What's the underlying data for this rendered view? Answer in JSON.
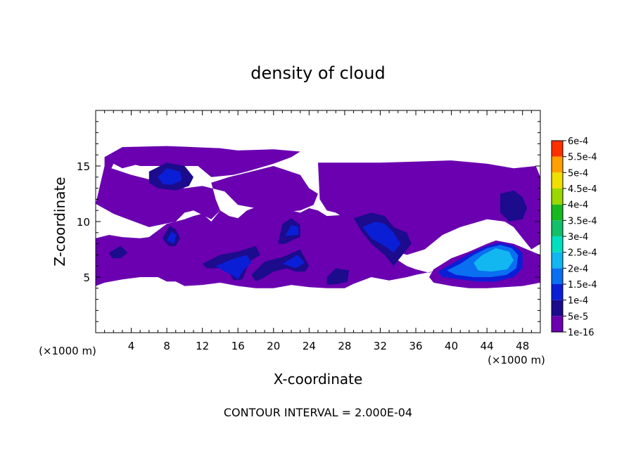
{
  "chart_data": {
    "type": "heatmap",
    "title": "density of cloud",
    "xlabel": "X-coordinate",
    "ylabel": "Z-coordinate",
    "x_unit_left": "(×1000 m)",
    "x_unit_right": "(×1000 m)",
    "xlim": [
      0,
      50
    ],
    "ylim": [
      0,
      20
    ],
    "x_ticks": [
      "4",
      "8",
      "12",
      "16",
      "20",
      "24",
      "28",
      "32",
      "36",
      "40",
      "44",
      "48"
    ],
    "x_tick_values": [
      4,
      8,
      12,
      16,
      20,
      24,
      28,
      32,
      36,
      40,
      44,
      48
    ],
    "y_ticks": [
      "5",
      "10",
      "15"
    ],
    "y_tick_values": [
      5,
      10,
      15
    ],
    "colorbar": {
      "labels": [
        "1e-16",
        "5e-5",
        "1e-4",
        "1.5e-4",
        "2e-4",
        "2.5e-4",
        "3e-4",
        "3.5e-4",
        "4e-4",
        "4.5e-4",
        "5e-4",
        "5.5e-4",
        "6e-4"
      ],
      "colors": [
        "#6a00b0",
        "#1c0b8c",
        "#0a1ed6",
        "#0a6ff0",
        "#12b6f0",
        "#00e0c0",
        "#10c06a",
        "#18b820",
        "#9ad800",
        "#f0e000",
        "#ffa000",
        "#ff3000",
        "#ff7a72"
      ]
    },
    "footnote": "CONTOUR INTERVAL = 2.000E-04",
    "regions": [
      {
        "level": 1,
        "points": [
          [
            0,
            11.6
          ],
          [
            1,
            13.5
          ],
          [
            1,
            15.8
          ],
          [
            3,
            16.6
          ],
          [
            14,
            16.6
          ],
          [
            14,
            15.5
          ],
          [
            11,
            15.2
          ],
          [
            9,
            15
          ],
          [
            5,
            15.2
          ],
          [
            3,
            14.8
          ],
          [
            2,
            15.2
          ]
        ]
      },
      {
        "level": 1,
        "points": [
          [
            1,
            15.8
          ],
          [
            3,
            16.7
          ],
          [
            8,
            16.8
          ],
          [
            14,
            16.6
          ],
          [
            16,
            16.4
          ],
          [
            20,
            16.5
          ],
          [
            23,
            16.3
          ],
          [
            22,
            15.8
          ],
          [
            20,
            15.2
          ],
          [
            17,
            14.5
          ],
          [
            15.5,
            14.2
          ],
          [
            13,
            14
          ],
          [
            11.5,
            15
          ],
          [
            9,
            15
          ],
          [
            5,
            15
          ]
        ]
      },
      {
        "level": 1,
        "points": [
          [
            0,
            11.6
          ],
          [
            2,
            10.7
          ],
          [
            3,
            10.4
          ],
          [
            6,
            9.5
          ],
          [
            9,
            10
          ],
          [
            10,
            10.8
          ],
          [
            11,
            11
          ],
          [
            13,
            10.2
          ],
          [
            14,
            11
          ],
          [
            13.5,
            12
          ],
          [
            13,
            13.5
          ],
          [
            15,
            14
          ],
          [
            17,
            14.4
          ],
          [
            20,
            15
          ],
          [
            23,
            14.2
          ],
          [
            24,
            13
          ],
          [
            25,
            12.5
          ],
          [
            24.5,
            11.5
          ],
          [
            23,
            11
          ],
          [
            20,
            10.8
          ],
          [
            18,
            11.2
          ],
          [
            16,
            11.5
          ],
          [
            14.5,
            12.7
          ],
          [
            12,
            13.2
          ],
          [
            10,
            13
          ],
          [
            8,
            13.4
          ],
          [
            6,
            13.8
          ],
          [
            4,
            14.2
          ],
          [
            1,
            15
          ]
        ]
      },
      {
        "level": 1,
        "points": [
          [
            25,
            15.3
          ],
          [
            29,
            15.3
          ],
          [
            32,
            15.3
          ],
          [
            36,
            15.4
          ],
          [
            40,
            15.5
          ],
          [
            44,
            15.2
          ],
          [
            47,
            14.8
          ],
          [
            49.5,
            15
          ],
          [
            50,
            14
          ],
          [
            50,
            8
          ],
          [
            49,
            7.5
          ],
          [
            48,
            8.5
          ],
          [
            47,
            9.5
          ],
          [
            46,
            10
          ],
          [
            44,
            10.2
          ],
          [
            41,
            9.5
          ],
          [
            39,
            8.8
          ],
          [
            37,
            7.5
          ],
          [
            35,
            7
          ],
          [
            33,
            7.5
          ],
          [
            30,
            9
          ],
          [
            28,
            10.3
          ],
          [
            27,
            10.8
          ],
          [
            26,
            11
          ],
          [
            25.2,
            12
          ]
        ]
      },
      {
        "level": 1,
        "points": [
          [
            0,
            8.5
          ],
          [
            1.5,
            8.8
          ],
          [
            3,
            8.6
          ],
          [
            5,
            8.5
          ],
          [
            6,
            8.6
          ],
          [
            8,
            9.8
          ],
          [
            10,
            10.2
          ],
          [
            11,
            10.5
          ],
          [
            12,
            10.7
          ],
          [
            13,
            10
          ],
          [
            14,
            11
          ],
          [
            15,
            10.5
          ],
          [
            16,
            10.3
          ],
          [
            17,
            11
          ],
          [
            18,
            11.3
          ],
          [
            19,
            11.5
          ],
          [
            21,
            11.2
          ],
          [
            23,
            10.8
          ],
          [
            24,
            11.2
          ],
          [
            25,
            11
          ],
          [
            26,
            10.5
          ],
          [
            28,
            10.6
          ],
          [
            30,
            10.9
          ],
          [
            30.5,
            9
          ],
          [
            33,
            7.5
          ],
          [
            34,
            6.5
          ],
          [
            35,
            6
          ],
          [
            36,
            5.7
          ],
          [
            37.5,
            5.4
          ],
          [
            38.5,
            5.6
          ],
          [
            36,
            5.2
          ],
          [
            35,
            5
          ],
          [
            33,
            4.7
          ],
          [
            31,
            5
          ],
          [
            29,
            4.4
          ],
          [
            28,
            4
          ],
          [
            26,
            4
          ],
          [
            24,
            4.1
          ],
          [
            22,
            4.3
          ],
          [
            20,
            4
          ],
          [
            18,
            4
          ],
          [
            16,
            4.2
          ],
          [
            14,
            4.5
          ],
          [
            12,
            4.3
          ],
          [
            10,
            4.2
          ],
          [
            9,
            4.6
          ],
          [
            8,
            4.6
          ],
          [
            7,
            5
          ],
          [
            5,
            5
          ],
          [
            3,
            4.8
          ],
          [
            1,
            4.5
          ],
          [
            0,
            4.2
          ]
        ]
      },
      {
        "level": 1,
        "points": [
          [
            38,
            5.7
          ],
          [
            40,
            6.7
          ],
          [
            42,
            7.3
          ],
          [
            44,
            8
          ],
          [
            45,
            8.3
          ],
          [
            47,
            8
          ],
          [
            48.5,
            7.5
          ],
          [
            50,
            7
          ],
          [
            50,
            4.5
          ],
          [
            48,
            4.2
          ],
          [
            46,
            4.1
          ],
          [
            44,
            4
          ],
          [
            42,
            4
          ],
          [
            40,
            4.2
          ],
          [
            38,
            4.5
          ],
          [
            37.5,
            5
          ]
        ]
      },
      {
        "level": 2,
        "points": [
          [
            6,
            14.5
          ],
          [
            8,
            15.3
          ],
          [
            10,
            15
          ],
          [
            11,
            14
          ],
          [
            10.5,
            13.2
          ],
          [
            9,
            12.8
          ],
          [
            7,
            13
          ],
          [
            6,
            13.5
          ]
        ]
      },
      {
        "level": 2,
        "points": [
          [
            7.5,
            8.5
          ],
          [
            8.3,
            9.6
          ],
          [
            9,
            9.3
          ],
          [
            9.5,
            8.5
          ],
          [
            9,
            7.8
          ],
          [
            8.2,
            7.8
          ]
        ]
      },
      {
        "level": 2,
        "points": [
          [
            12,
            6.2
          ],
          [
            14,
            7
          ],
          [
            16,
            7.3
          ],
          [
            18,
            7.8
          ],
          [
            18.5,
            7
          ],
          [
            17.5,
            6.5
          ],
          [
            17,
            5.8
          ],
          [
            16.5,
            4.8
          ],
          [
            15.5,
            4.7
          ],
          [
            15,
            5.5
          ],
          [
            14,
            5.8
          ],
          [
            12.5,
            5.8
          ]
        ]
      },
      {
        "level": 2,
        "points": [
          [
            17.5,
            5.2
          ],
          [
            19,
            6.4
          ],
          [
            21,
            6.8
          ],
          [
            23,
            7.5
          ],
          [
            24,
            6
          ],
          [
            23.5,
            5.5
          ],
          [
            22.5,
            5.5
          ],
          [
            21.5,
            5.8
          ],
          [
            20,
            5.5
          ],
          [
            19,
            5
          ],
          [
            18,
            4.6
          ]
        ]
      },
      {
        "level": 2,
        "points": [
          [
            20.5,
            8
          ],
          [
            21,
            9.8
          ],
          [
            22,
            10.3
          ],
          [
            23,
            9.7
          ],
          [
            23,
            8.6
          ],
          [
            22.3,
            8.4
          ],
          [
            21.3,
            8
          ]
        ]
      },
      {
        "level": 2,
        "points": [
          [
            29,
            10.3
          ],
          [
            31,
            10.8
          ],
          [
            32.5,
            10.5
          ],
          [
            33.5,
            9.5
          ],
          [
            35,
            9
          ],
          [
            35.5,
            8
          ],
          [
            34.5,
            7
          ],
          [
            33.5,
            6
          ],
          [
            32.5,
            7
          ],
          [
            31,
            8
          ],
          [
            30,
            9
          ]
        ]
      },
      {
        "level": 2,
        "points": [
          [
            45.5,
            12.5
          ],
          [
            47,
            12.8
          ],
          [
            48,
            12.2
          ],
          [
            48.5,
            11.2
          ],
          [
            48,
            10.2
          ],
          [
            46.5,
            10
          ],
          [
            45.5,
            10.8
          ]
        ]
      },
      {
        "level": 2,
        "points": [
          [
            26,
            5
          ],
          [
            27,
            5.8
          ],
          [
            28.5,
            5.6
          ],
          [
            28.3,
            4.6
          ],
          [
            27.3,
            4.4
          ],
          [
            26,
            4.3
          ]
        ]
      },
      {
        "level": 2,
        "points": [
          [
            1.5,
            7.2
          ],
          [
            2.8,
            7.8
          ],
          [
            3.6,
            7.2
          ],
          [
            2.8,
            6.7
          ],
          [
            1.8,
            6.7
          ]
        ]
      },
      {
        "level": 3,
        "points": [
          [
            7,
            14
          ],
          [
            8,
            14.8
          ],
          [
            9.5,
            14.5
          ],
          [
            9.7,
            13.7
          ],
          [
            8.5,
            13.3
          ],
          [
            7.5,
            13.4
          ]
        ]
      },
      {
        "level": 3,
        "points": [
          [
            13.5,
            6
          ],
          [
            15.3,
            6.6
          ],
          [
            17,
            7
          ],
          [
            17.5,
            6.3
          ],
          [
            16.5,
            5.5
          ],
          [
            16,
            4.8
          ],
          [
            15.3,
            5.2
          ],
          [
            14.3,
            5.6
          ]
        ]
      },
      {
        "level": 3,
        "points": [
          [
            21,
            6.2
          ],
          [
            22.7,
            7
          ],
          [
            23.5,
            6.3
          ],
          [
            22.5,
            5.8
          ]
        ]
      },
      {
        "level": 3,
        "points": [
          [
            30,
            9.5
          ],
          [
            31.5,
            10
          ],
          [
            32.5,
            9.8
          ],
          [
            33.5,
            9
          ],
          [
            34.3,
            8
          ],
          [
            33.5,
            7.2
          ],
          [
            32.5,
            7.8
          ],
          [
            31,
            8.5
          ]
        ]
      },
      {
        "level": 3,
        "points": [
          [
            21.3,
            8.7
          ],
          [
            22,
            9.7
          ],
          [
            22.8,
            9.5
          ],
          [
            22.8,
            8.8
          ]
        ]
      },
      {
        "level": 3,
        "points": [
          [
            8,
            8.3
          ],
          [
            8.5,
            9.1
          ],
          [
            9.1,
            8.8
          ],
          [
            8.8,
            8
          ]
        ]
      },
      {
        "level": 3,
        "points": [
          [
            38.5,
            5.5
          ],
          [
            40.5,
            6.4
          ],
          [
            42,
            7.1
          ],
          [
            44,
            7.8
          ],
          [
            45.5,
            8.1
          ],
          [
            47,
            7.8
          ],
          [
            48,
            7.2
          ],
          [
            48,
            5.8
          ],
          [
            47,
            5
          ],
          [
            45,
            4.6
          ],
          [
            43,
            4.6
          ],
          [
            41,
            4.8
          ],
          [
            39,
            5
          ]
        ]
      },
      {
        "level": 4,
        "points": [
          [
            39.5,
            5.6
          ],
          [
            41,
            6.2
          ],
          [
            42.5,
            7
          ],
          [
            44,
            7.6
          ],
          [
            45.5,
            7.9
          ],
          [
            46.8,
            7.6
          ],
          [
            47.5,
            7
          ],
          [
            47.3,
            5.8
          ],
          [
            46.2,
            5.2
          ],
          [
            44.5,
            5
          ],
          [
            42.5,
            5
          ],
          [
            40.5,
            5.2
          ]
        ]
      },
      {
        "level": 5,
        "points": [
          [
            42.5,
            6.3
          ],
          [
            43.5,
            7
          ],
          [
            45,
            7.6
          ],
          [
            46.5,
            7.3
          ],
          [
            47,
            6.5
          ],
          [
            46.3,
            5.7
          ],
          [
            44.5,
            5.5
          ],
          [
            43,
            5.6
          ]
        ]
      }
    ]
  }
}
